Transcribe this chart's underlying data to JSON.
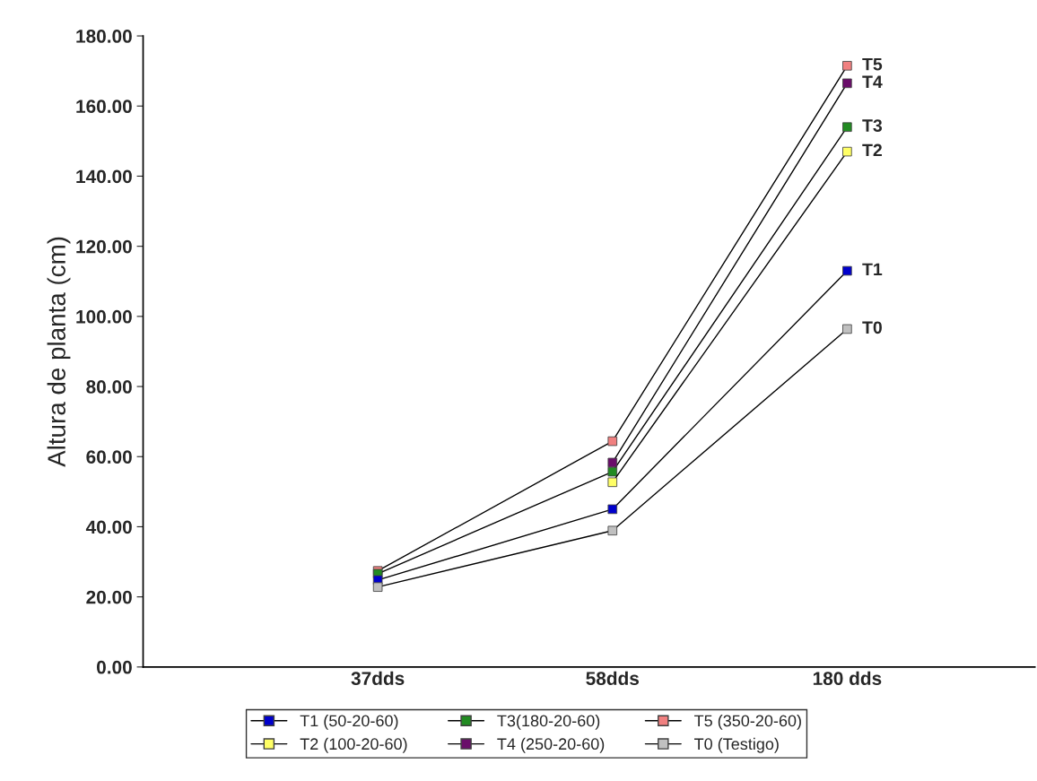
{
  "chart_data": {
    "type": "line",
    "ylabel": "Altura de planta (cm)",
    "categories": [
      "37dds",
      "58dds",
      "180 dds"
    ],
    "series": [
      {
        "name": "T1 (50-20-60)",
        "color": "#0000cc",
        "values": [
          24.8,
          45,
          113
        ]
      },
      {
        "name": "T2 (100-20-60)",
        "color": "#ffff66",
        "values": [
          null,
          52.7,
          147
        ]
      },
      {
        "name": "T3(180-20-60)",
        "color": "#228b22",
        "values": [
          26.6,
          55.7,
          154
        ]
      },
      {
        "name": "T4 (250-20-60)",
        "color": "#6a0d6a",
        "values": [
          null,
          58.3,
          166.5
        ]
      },
      {
        "name": "T5 (350-20-60)",
        "color": "#f08080",
        "values": [
          27.4,
          64.4,
          171.5
        ]
      },
      {
        "name": "T0 (Testigo)",
        "color": "#c0c0c0",
        "values": [
          22.8,
          38.9,
          96.4
        ]
      }
    ],
    "ylim": [
      0,
      180
    ],
    "yticks": [
      {
        "value": 0,
        "label": "0.00"
      },
      {
        "value": 20,
        "label": "20.00"
      },
      {
        "value": 40,
        "label": "40.00"
      },
      {
        "value": 60,
        "label": "60.00"
      },
      {
        "value": 80,
        "label": "80.00"
      },
      {
        "value": 100,
        "label": "100.00"
      },
      {
        "value": 120,
        "label": "120.00"
      },
      {
        "value": 140,
        "label": "140.00"
      },
      {
        "value": 160,
        "label": "160.00"
      },
      {
        "value": 180,
        "label": "180.00"
      }
    ],
    "annotations": [
      {
        "text": "T5",
        "x": "180 dds",
        "y": 171.5
      },
      {
        "text": "T4",
        "x": "180 dds",
        "y": 166.5
      },
      {
        "text": "T3",
        "x": "180 dds",
        "y": 154
      },
      {
        "text": "T2",
        "x": "180 dds",
        "y": 147
      },
      {
        "text": "T1",
        "x": "180 dds",
        "y": 113
      },
      {
        "text": "T0",
        "x": "180 dds",
        "y": 96.4
      }
    ],
    "marker": "square",
    "line_style": "solid",
    "legend": "bottom",
    "grid": false
  }
}
